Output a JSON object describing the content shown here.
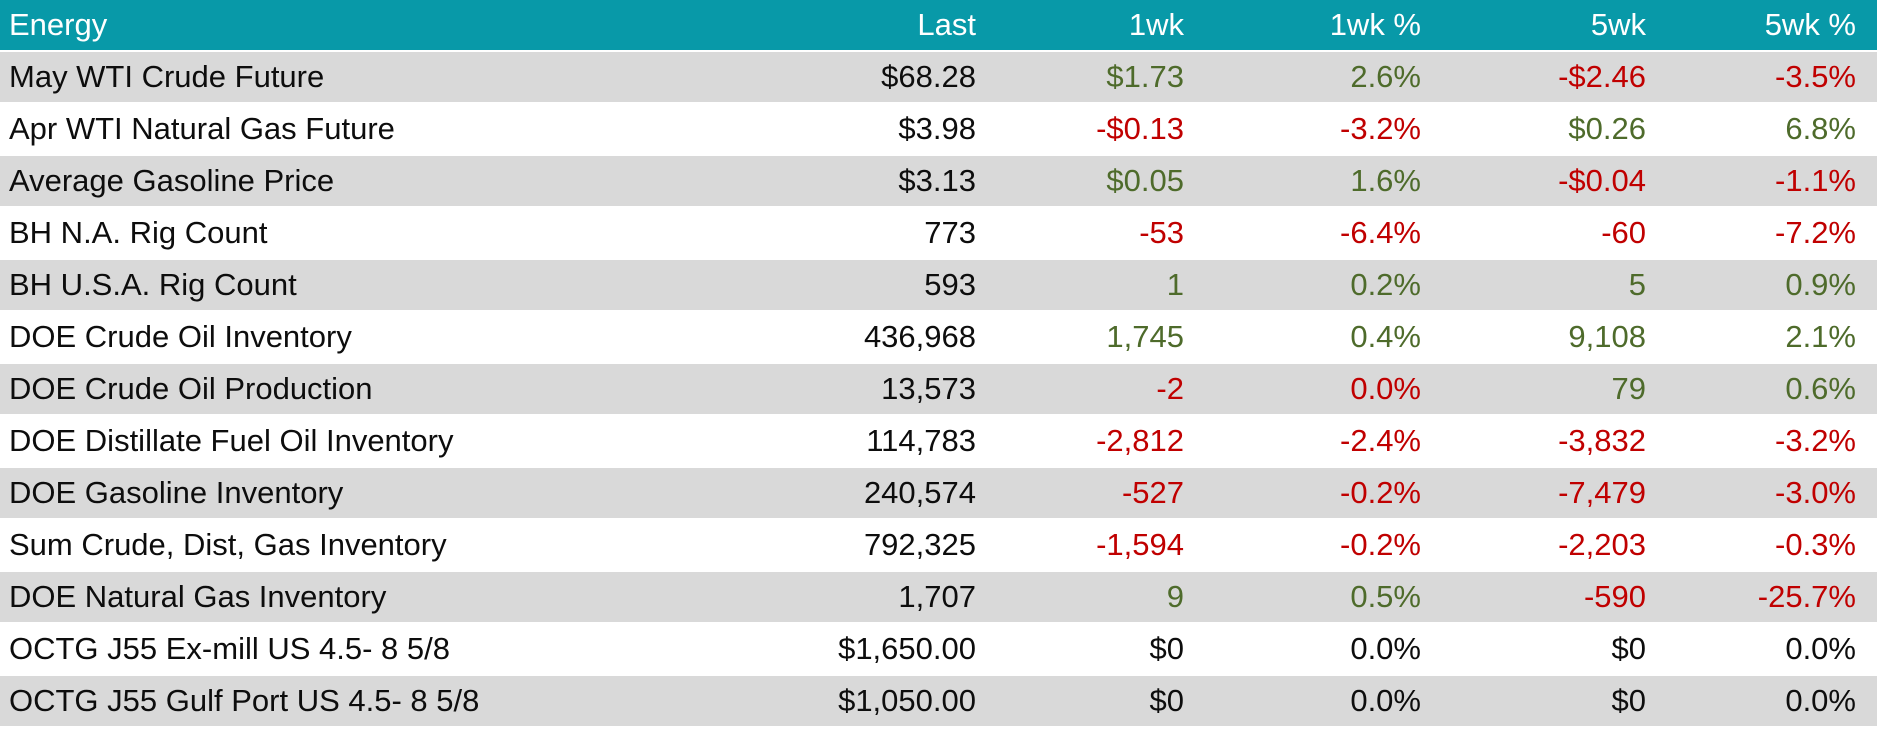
{
  "colors": {
    "header_bg": "#0899A8",
    "header_fg": "#FFFFFF",
    "row_alt_bg": "#D9D9D9",
    "row_bg": "#FFFFFF",
    "up": "#4E6B2B",
    "down": "#C00000",
    "text": "#0D0D0D"
  },
  "chart_data": {
    "type": "table",
    "title": "Energy",
    "columns": [
      "Energy",
      "Last",
      "1wk",
      "1wk %",
      "5wk",
      "5wk %"
    ],
    "rows": [
      {
        "label": "May WTI Crude Future",
        "last": "$68.28",
        "wk1": "$1.73",
        "wk1_pct": "2.6%",
        "wk5": "-$2.46",
        "wk5_pct": "-3.5%",
        "wk1_trend": "up",
        "wk5_trend": "down"
      },
      {
        "label": "Apr WTI Natural Gas Future",
        "last": "$3.98",
        "wk1": "-$0.13",
        "wk1_pct": "-3.2%",
        "wk5": "$0.26",
        "wk5_pct": "6.8%",
        "wk1_trend": "down",
        "wk5_trend": "up"
      },
      {
        "label": "Average Gasoline Price",
        "last": "$3.13",
        "wk1": "$0.05",
        "wk1_pct": "1.6%",
        "wk5": "-$0.04",
        "wk5_pct": "-1.1%",
        "wk1_trend": "up",
        "wk5_trend": "down"
      },
      {
        "label": "BH N.A. Rig Count",
        "last": "773",
        "wk1": "-53",
        "wk1_pct": "-6.4%",
        "wk5": "-60",
        "wk5_pct": "-7.2%",
        "wk1_trend": "down",
        "wk5_trend": "down"
      },
      {
        "label": "BH U.S.A. Rig Count",
        "last": "593",
        "wk1": "1",
        "wk1_pct": "0.2%",
        "wk5": "5",
        "wk5_pct": "0.9%",
        "wk1_trend": "up",
        "wk5_trend": "up"
      },
      {
        "label": "DOE Crude Oil Inventory",
        "last": "436,968",
        "wk1": "1,745",
        "wk1_pct": "0.4%",
        "wk5": "9,108",
        "wk5_pct": "2.1%",
        "wk1_trend": "up",
        "wk5_trend": "up"
      },
      {
        "label": "DOE Crude Oil Production",
        "last": "13,573",
        "wk1": "-2",
        "wk1_pct": "0.0%",
        "wk5": "79",
        "wk5_pct": "0.6%",
        "wk1_trend": "down",
        "wk5_trend": "up"
      },
      {
        "label": "DOE Distillate Fuel Oil Inventory",
        "last": "114,783",
        "wk1": "-2,812",
        "wk1_pct": "-2.4%",
        "wk5": "-3,832",
        "wk5_pct": "-3.2%",
        "wk1_trend": "down",
        "wk5_trend": "down"
      },
      {
        "label": "DOE Gasoline Inventory",
        "last": "240,574",
        "wk1": "-527",
        "wk1_pct": "-0.2%",
        "wk5": "-7,479",
        "wk5_pct": "-3.0%",
        "wk1_trend": "down",
        "wk5_trend": "down"
      },
      {
        "label": "Sum Crude, Dist, Gas Inventory",
        "last": "792,325",
        "wk1": "-1,594",
        "wk1_pct": "-0.2%",
        "wk5": "-2,203",
        "wk5_pct": "-0.3%",
        "wk1_trend": "down",
        "wk5_trend": "down"
      },
      {
        "label": "DOE Natural Gas Inventory",
        "last": "1,707",
        "wk1": "9",
        "wk1_pct": "0.5%",
        "wk5": "-590",
        "wk5_pct": "-25.7%",
        "wk1_trend": "up",
        "wk5_trend": "down"
      },
      {
        "label": "OCTG J55 Ex-mill US 4.5- 8 5/8",
        "last": "$1,650.00",
        "wk1": "$0",
        "wk1_pct": "0.0%",
        "wk5": "$0",
        "wk5_pct": "0.0%",
        "wk1_trend": "flat",
        "wk5_trend": "flat"
      },
      {
        "label": "OCTG J55 Gulf Port US 4.5- 8 5/8",
        "last": "$1,050.00",
        "wk1": "$0",
        "wk1_pct": "0.0%",
        "wk5": "$0",
        "wk5_pct": "0.0%",
        "wk1_trend": "flat",
        "wk5_trend": "flat"
      }
    ]
  }
}
